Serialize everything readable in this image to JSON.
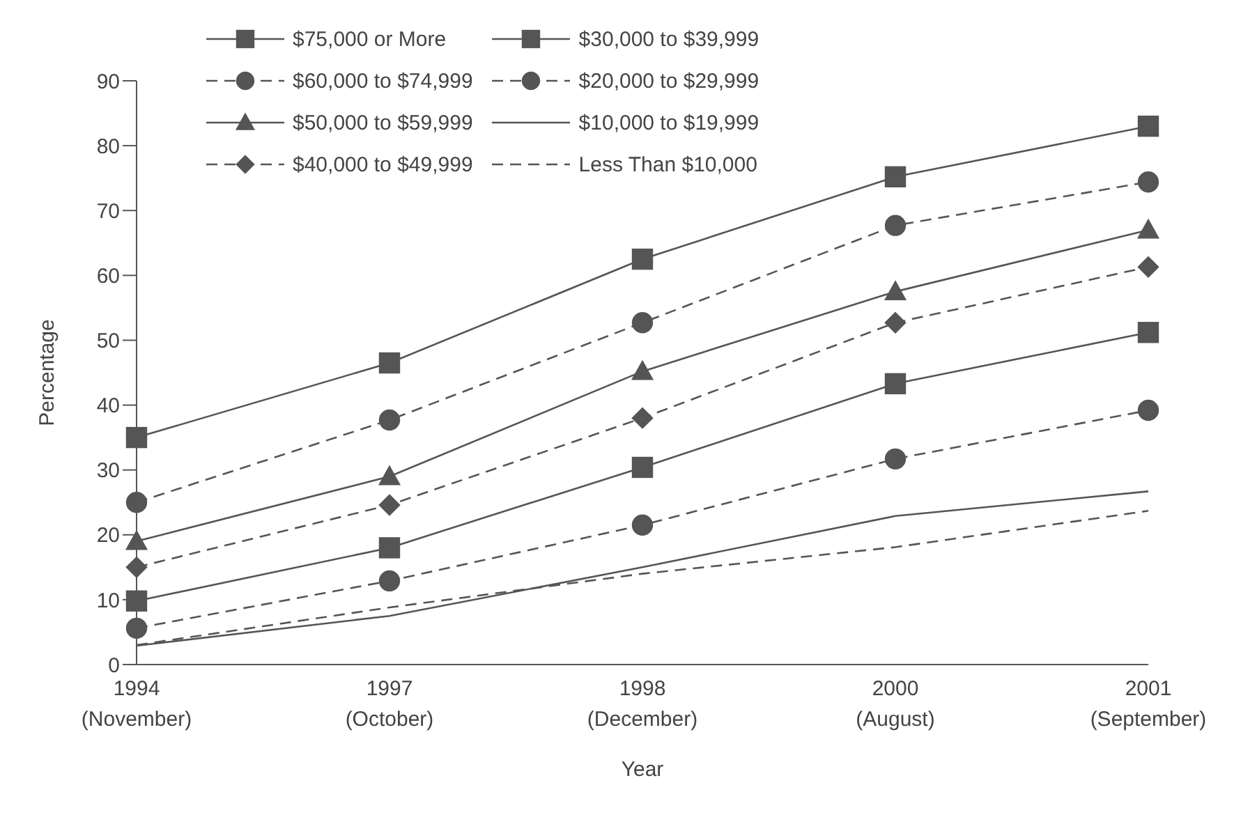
{
  "chart_data": {
    "type": "line",
    "xlabel": "Year",
    "ylabel": "Percentage",
    "categories": [
      "1994\n(November)",
      "1997\n(October)",
      "1998\n(December)",
      "2000\n(August)",
      "2001\n(September)"
    ],
    "ylim": [
      0,
      90
    ],
    "yticks": [
      0,
      10,
      20,
      30,
      40,
      50,
      60,
      70,
      80,
      90
    ],
    "legend": "top left",
    "series": [
      {
        "name": "$75,000 or More",
        "color": "#555555",
        "marker": "square",
        "line_style": "solid",
        "values": [
          35,
          46.5,
          62.5,
          75.2,
          83
        ]
      },
      {
        "name": "$60,000 to $74,999",
        "color": "#555555",
        "marker": "circle",
        "line_style": "dashed",
        "values": [
          25,
          37.7,
          52.7,
          67.7,
          74.4
        ]
      },
      {
        "name": "$50,000 to $59,999",
        "color": "#555555",
        "marker": "triangle",
        "line_style": "solid",
        "values": [
          19,
          29,
          45.2,
          57.5,
          67
        ]
      },
      {
        "name": "$40,000 to $49,999",
        "color": "#555555",
        "marker": "diamond",
        "line_style": "dashed",
        "values": [
          15,
          24.6,
          38,
          52.7,
          61.3
        ]
      },
      {
        "name": "$30,000 to $39,999",
        "color": "#555555",
        "marker": "square",
        "line_style": "solid",
        "values": [
          9.8,
          18,
          30.4,
          43.3,
          51.2
        ]
      },
      {
        "name": "$20,000 to $29,999",
        "color": "#555555",
        "marker": "circle",
        "line_style": "dashed",
        "values": [
          5.6,
          12.9,
          21.5,
          31.7,
          39.2
        ]
      },
      {
        "name": "$10,000 to $19,999",
        "color": "#555555",
        "marker": "none",
        "line_style": "solid",
        "values": [
          2.9,
          7.5,
          15,
          22.9,
          26.7
        ]
      },
      {
        "name": "Less Than $10,000",
        "color": "#555555",
        "marker": "none",
        "line_style": "dashed",
        "values": [
          3,
          8.8,
          14,
          18.1,
          23.7
        ]
      }
    ]
  }
}
